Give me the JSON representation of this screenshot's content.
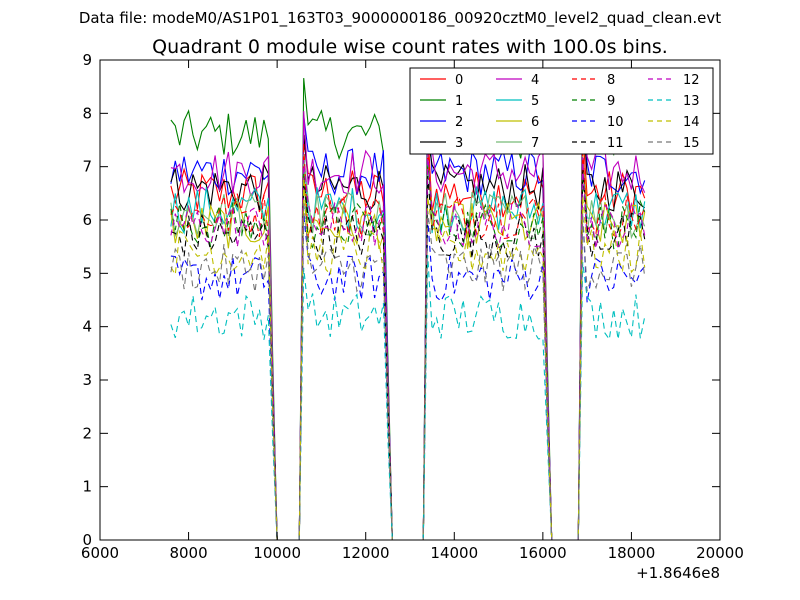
{
  "figure": {
    "suptitle": "Data file: modeM0/AS1P01_163T03_9000000186_00920cztM0_level2_quad_clean.evt"
  },
  "chart_data": {
    "type": "line",
    "title": "Quadrant 0 module wise count rates with 100.0s bins.",
    "xlabel": "",
    "ylabel": "",
    "x_offset_label": "+1.8646e8",
    "xlim": [
      6000,
      20000
    ],
    "ylim": [
      0,
      9
    ],
    "x_ticks": [
      6000,
      8000,
      10000,
      12000,
      14000,
      16000,
      18000,
      20000
    ],
    "x_tick_labels": [
      "6000",
      "8000",
      "10000",
      "12000",
      "14000",
      "16000",
      "18000",
      "20000"
    ],
    "y_ticks": [
      0,
      1,
      2,
      3,
      4,
      5,
      6,
      7,
      8,
      9
    ],
    "y_tick_labels": [
      "0",
      "1",
      "2",
      "3",
      "4",
      "5",
      "6",
      "7",
      "8",
      "9"
    ],
    "grid": false,
    "legend_position": "top-right",
    "legend_columns": 4,
    "x_start": 7600,
    "x_step": 100,
    "segments": [
      {
        "start": 7600,
        "end": 9900
      },
      {
        "start": 10600,
        "end": 12500
      },
      {
        "start": 13400,
        "end": 16100
      },
      {
        "start": 16900,
        "end": 18300
      }
    ],
    "series": [
      {
        "name": "0",
        "color": "#ff0000",
        "dash": "solid",
        "level": 6.5
      },
      {
        "name": "1",
        "color": "#008000",
        "dash": "solid",
        "level": 7.6
      },
      {
        "name": "2",
        "color": "#0000ff",
        "dash": "solid",
        "level": 6.9
      },
      {
        "name": "3",
        "color": "#000000",
        "dash": "solid",
        "level": 6.6
      },
      {
        "name": "4",
        "color": "#bf00bf",
        "dash": "solid",
        "level": 6.9
      },
      {
        "name": "5",
        "color": "#00bfbf",
        "dash": "solid",
        "level": 6.2
      },
      {
        "name": "6",
        "color": "#bfbf00",
        "dash": "solid",
        "level": 5.9
      },
      {
        "name": "7",
        "color": "#77bb77",
        "dash": "solid",
        "level": 6.1
      },
      {
        "name": "8",
        "color": "#ff0000",
        "dash": "dashed",
        "level": 6.1
      },
      {
        "name": "9",
        "color": "#008000",
        "dash": "dashed",
        "level": 5.9
      },
      {
        "name": "10",
        "color": "#0000ff",
        "dash": "dashed",
        "level": 4.9
      },
      {
        "name": "11",
        "color": "#000000",
        "dash": "dashed",
        "level": 5.7
      },
      {
        "name": "12",
        "color": "#bf00bf",
        "dash": "dashed",
        "level": 5.9
      },
      {
        "name": "13",
        "color": "#00bfbf",
        "dash": "dashed",
        "level": 4.2
      },
      {
        "name": "14",
        "color": "#bfbf00",
        "dash": "dashed",
        "level": 5.4
      },
      {
        "name": "15",
        "color": "#777777",
        "dash": "dashed",
        "level": 5.1
      }
    ]
  }
}
